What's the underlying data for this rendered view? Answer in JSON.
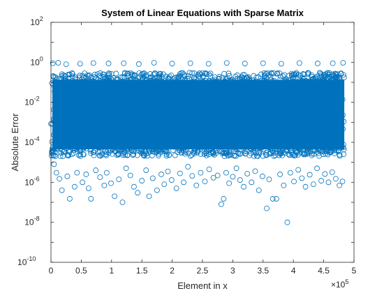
{
  "chart_data": {
    "type": "scatter",
    "title": "System of Linear Equations with Sparse Matrix",
    "xlabel": "Element in x",
    "ylabel": "Absolute Error",
    "x_exponent_label": "×10",
    "x_exponent_power": "5",
    "xlim": [
      0,
      500000
    ],
    "ylim": [
      1e-10,
      100
    ],
    "yscale": "log",
    "grid": false,
    "marker": "open-circle",
    "color": "#0072bd",
    "x_ticks": [
      {
        "value": 0,
        "label": "0"
      },
      {
        "value": 50000,
        "label": "0.5"
      },
      {
        "value": 100000,
        "label": "1"
      },
      {
        "value": 150000,
        "label": "1.5"
      },
      {
        "value": 200000,
        "label": "2"
      },
      {
        "value": 250000,
        "label": "2.5"
      },
      {
        "value": 300000,
        "label": "3"
      },
      {
        "value": 350000,
        "label": "3.5"
      },
      {
        "value": 400000,
        "label": "4"
      },
      {
        "value": 450000,
        "label": "4.5"
      },
      {
        "value": 500000,
        "label": "5"
      }
    ],
    "y_ticks": [
      {
        "value": 1e-10,
        "base": "10",
        "exp": "-10"
      },
      {
        "value": 1e-08,
        "base": "10",
        "exp": "-8"
      },
      {
        "value": 1e-06,
        "base": "10",
        "exp": "-6"
      },
      {
        "value": 0.0001,
        "base": "10",
        "exp": "-4"
      },
      {
        "value": 0.01,
        "base": "10",
        "exp": "-2"
      },
      {
        "value": 1,
        "base": "10",
        "exp": "0"
      },
      {
        "value": 100,
        "base": "10",
        "exp": "2"
      }
    ],
    "dense_band": {
      "x_range": [
        0,
        484000
      ],
      "y_range": [
        2e-05,
        0.3
      ]
    },
    "points": [
      {
        "x": 3000,
        "y": 0.9
      },
      {
        "x": 12000,
        "y": 0.95
      },
      {
        "x": 25000,
        "y": 0.8
      },
      {
        "x": 48000,
        "y": 0.85
      },
      {
        "x": 70000,
        "y": 0.92
      },
      {
        "x": 95000,
        "y": 0.88
      },
      {
        "x": 120000,
        "y": 0.9
      },
      {
        "x": 145000,
        "y": 0.82
      },
      {
        "x": 170000,
        "y": 0.95
      },
      {
        "x": 200000,
        "y": 0.86
      },
      {
        "x": 230000,
        "y": 0.9
      },
      {
        "x": 260000,
        "y": 0.84
      },
      {
        "x": 290000,
        "y": 0.93
      },
      {
        "x": 320000,
        "y": 0.87
      },
      {
        "x": 350000,
        "y": 0.9
      },
      {
        "x": 380000,
        "y": 0.85
      },
      {
        "x": 410000,
        "y": 0.92
      },
      {
        "x": 440000,
        "y": 0.88
      },
      {
        "x": 465000,
        "y": 0.9
      },
      {
        "x": 482000,
        "y": 0.95
      },
      {
        "x": 5000,
        "y": 8e-06
      },
      {
        "x": 9000,
        "y": 3e-06
      },
      {
        "x": 14000,
        "y": 1.5e-06
      },
      {
        "x": 18000,
        "y": 4e-07
      },
      {
        "x": 27000,
        "y": 2e-06
      },
      {
        "x": 31000,
        "y": 1.5e-07
      },
      {
        "x": 39000,
        "y": 6e-07
      },
      {
        "x": 43000,
        "y": 3e-06
      },
      {
        "x": 52000,
        "y": 1e-06
      },
      {
        "x": 58000,
        "y": 2.5e-06
      },
      {
        "x": 62000,
        "y": 5e-07
      },
      {
        "x": 66000,
        "y": 1.5e-07
      },
      {
        "x": 74000,
        "y": 4e-06
      },
      {
        "x": 81000,
        "y": 1.8e-06
      },
      {
        "x": 88000,
        "y": 7e-07
      },
      {
        "x": 92000,
        "y": 3e-06
      },
      {
        "x": 99000,
        "y": 9e-07
      },
      {
        "x": 105000,
        "y": 2e-07
      },
      {
        "x": 112000,
        "y": 1.4e-06
      },
      {
        "x": 118000,
        "y": 1e-07
      },
      {
        "x": 124000,
        "y": 5e-06
      },
      {
        "x": 131000,
        "y": 2.2e-06
      },
      {
        "x": 137000,
        "y": 6e-07
      },
      {
        "x": 143000,
        "y": 3e-07
      },
      {
        "x": 150000,
        "y": 1.2e-06
      },
      {
        "x": 157000,
        "y": 4e-06
      },
      {
        "x": 162000,
        "y": 2e-07
      },
      {
        "x": 168000,
        "y": 1.6e-06
      },
      {
        "x": 175000,
        "y": 4e-07
      },
      {
        "x": 182000,
        "y": 2.5e-06
      },
      {
        "x": 187000,
        "y": 8e-07
      },
      {
        "x": 193000,
        "y": 3.5e-06
      },
      {
        "x": 199000,
        "y": 1.3e-06
      },
      {
        "x": 207000,
        "y": 5e-07
      },
      {
        "x": 213000,
        "y": 2.8e-06
      },
      {
        "x": 219000,
        "y": 1e-06
      },
      {
        "x": 226000,
        "y": 6e-06
      },
      {
        "x": 233000,
        "y": 2.1e-06
      },
      {
        "x": 240000,
        "y": 7e-07
      },
      {
        "x": 247000,
        "y": 3e-06
      },
      {
        "x": 254000,
        "y": 1.1e-06
      },
      {
        "x": 261000,
        "y": 4.5e-06
      },
      {
        "x": 268000,
        "y": 1.7e-06
      },
      {
        "x": 275000,
        "y": 2.2e-06
      },
      {
        "x": 281000,
        "y": 8e-08
      },
      {
        "x": 285000,
        "y": 1.5e-07
      },
      {
        "x": 289000,
        "y": 3e-06
      },
      {
        "x": 294000,
        "y": 9e-07
      },
      {
        "x": 300000,
        "y": 1.9e-06
      },
      {
        "x": 306000,
        "y": 5e-06
      },
      {
        "x": 312000,
        "y": 1.3e-06
      },
      {
        "x": 318000,
        "y": 6e-07
      },
      {
        "x": 324000,
        "y": 2.7e-06
      },
      {
        "x": 331000,
        "y": 1e-06
      },
      {
        "x": 337000,
        "y": 3.6e-06
      },
      {
        "x": 343000,
        "y": 4e-07
      },
      {
        "x": 349000,
        "y": 2e-06
      },
      {
        "x": 356000,
        "y": 5e-08
      },
      {
        "x": 360000,
        "y": 1.4e-06
      },
      {
        "x": 366000,
        "y": 1.5e-07
      },
      {
        "x": 372000,
        "y": 1.5e-07
      },
      {
        "x": 378000,
        "y": 2.5e-06
      },
      {
        "x": 384000,
        "y": 7e-07
      },
      {
        "x": 390000,
        "y": 1e-08
      },
      {
        "x": 395000,
        "y": 3e-06
      },
      {
        "x": 401000,
        "y": 1.1e-06
      },
      {
        "x": 408000,
        "y": 4.2e-06
      },
      {
        "x": 414000,
        "y": 1.6e-06
      },
      {
        "x": 420000,
        "y": 6e-07
      },
      {
        "x": 427000,
        "y": 2.4e-06
      },
      {
        "x": 433000,
        "y": 8e-07
      },
      {
        "x": 439000,
        "y": 5e-06
      },
      {
        "x": 446000,
        "y": 1.2e-06
      },
      {
        "x": 452000,
        "y": 2.6e-06
      },
      {
        "x": 458000,
        "y": 1e-06
      },
      {
        "x": 464000,
        "y": 3.2e-06
      },
      {
        "x": 470000,
        "y": 1.5e-06
      },
      {
        "x": 476000,
        "y": 7e-07
      },
      {
        "x": 481000,
        "y": 1.1e-06
      }
    ]
  }
}
